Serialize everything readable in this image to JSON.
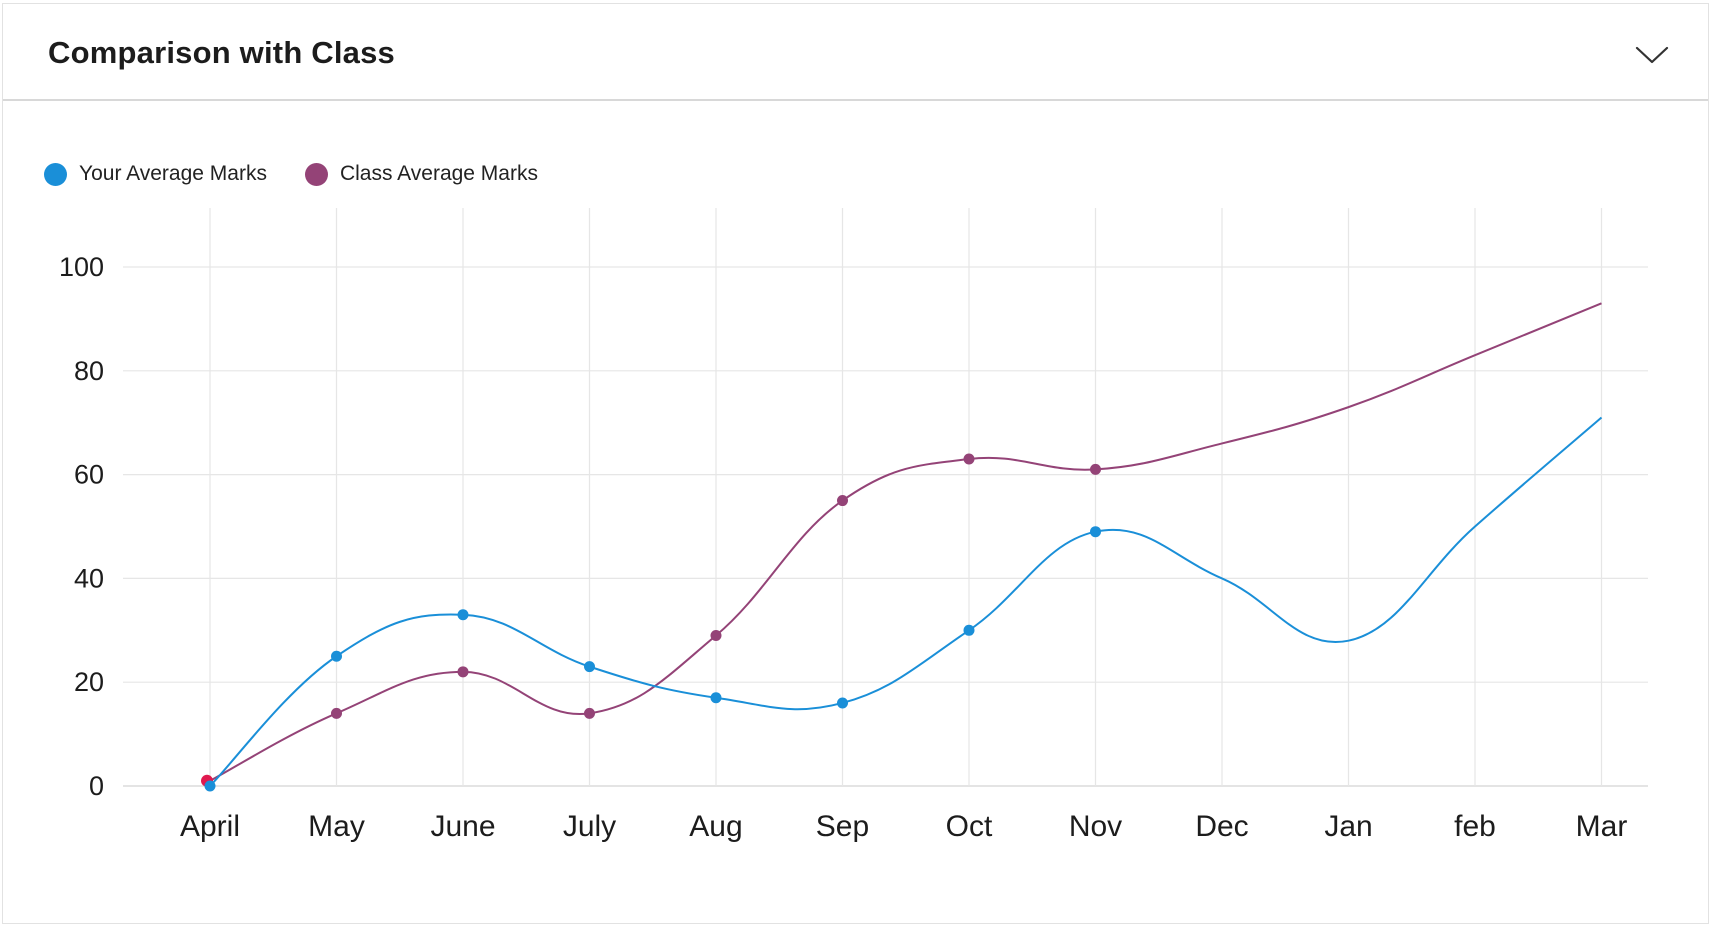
{
  "header": {
    "title": "Comparison with Class"
  },
  "icons": {
    "collapse": "chevron-down-icon"
  },
  "colors": {
    "your_series": "#1a8fd8",
    "class_series": "#944377",
    "highlight_point": "#e0194f",
    "grid": "#e6e6e6",
    "axis_text": "#1c1c1c"
  },
  "chart_data": {
    "type": "line",
    "categories": [
      "April",
      "May",
      "June",
      "July",
      "Aug",
      "Sep",
      "Oct",
      "Nov",
      "Dec",
      "Jan",
      "feb",
      "Mar"
    ],
    "series": [
      {
        "name": "Your Average Marks",
        "values": [
          0,
          25,
          33,
          23,
          17,
          16,
          30,
          49,
          40,
          28,
          50,
          71
        ]
      },
      {
        "name": "Class Average Marks",
        "values": [
          1,
          14,
          22,
          14,
          29,
          55,
          63,
          61,
          66,
          73,
          83,
          93
        ]
      }
    ],
    "ylim": [
      0,
      100
    ],
    "yticks": [
      0,
      20,
      40,
      60,
      80,
      100
    ],
    "grid": true,
    "legend": "top-left"
  }
}
